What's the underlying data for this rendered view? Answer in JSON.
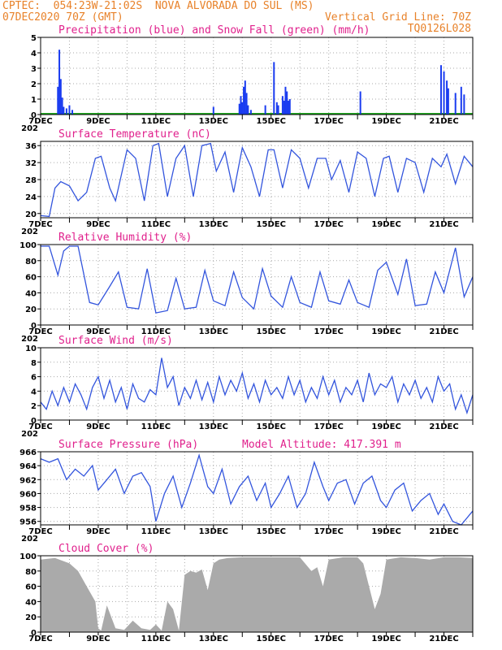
{
  "header": {
    "line1_left": "CPTEC:  054:23W-21:02S  NOVA ALVORADA DO SUL (MS)",
    "line2_left": "07DEC2020 70Z (GMT)",
    "line2_right": "Vertical Grid Line: 70Z",
    "line3_right": "TQ0126L028"
  },
  "x_axis": {
    "labels": [
      "7DEC",
      "9DEC",
      "11DEC",
      "13DEC",
      "15DEC",
      "17DEC",
      "19DEC",
      "21DEC"
    ],
    "label_days": [
      7,
      9,
      11,
      13,
      15,
      17,
      19,
      21
    ],
    "start_day": 7,
    "end_day": 22,
    "year_label": "202"
  },
  "colors": {
    "blue_line": "#3355dd",
    "precip": "#1a3cf0",
    "snow": "#22aa22",
    "cloud": "#aaaaaa",
    "title": "#e0208c",
    "header": "#e8822a"
  },
  "chart_data": [
    {
      "type": "bar",
      "title": "Precipitation (blue) and Snow Fall (green) (mm/h)",
      "ylim": [
        0,
        5
      ],
      "yticks": [
        0,
        1,
        2,
        3,
        4,
        5
      ],
      "x_day": [
        7.6,
        7.65,
        7.7,
        7.75,
        7.8,
        7.9,
        8.0,
        8.1,
        13.0,
        13.9,
        13.95,
        14.0,
        14.05,
        14.1,
        14.15,
        14.2,
        14.3,
        14.8,
        15.1,
        15.2,
        15.25,
        15.4,
        15.45,
        15.5,
        15.55,
        15.6,
        15.65,
        18.1,
        20.9,
        21.0,
        21.1,
        21.15,
        21.4,
        21.6,
        21.7
      ],
      "values": [
        1.8,
        4.2,
        2.3,
        1.1,
        0.5,
        0.4,
        0.6,
        0.3,
        0.5,
        0.7,
        1.2,
        0.8,
        1.8,
        2.2,
        1.4,
        0.6,
        0.3,
        0.6,
        3.4,
        0.8,
        0.6,
        1.2,
        0.9,
        1.8,
        1.5,
        0.9,
        1.0,
        1.5,
        3.2,
        2.8,
        2.2,
        1.7,
        1.4,
        1.8,
        1.3
      ]
    },
    {
      "type": "line",
      "title": "Surface Temperature (nC)",
      "ylim": [
        19,
        37
      ],
      "yticks": [
        20,
        24,
        28,
        32,
        36
      ],
      "x_day": [
        7.0,
        7.3,
        7.5,
        7.7,
        8.0,
        8.3,
        8.6,
        8.9,
        9.1,
        9.4,
        9.6,
        10.0,
        10.3,
        10.6,
        10.9,
        11.1,
        11.4,
        11.7,
        12.0,
        12.3,
        12.6,
        12.9,
        13.1,
        13.4,
        13.7,
        14.0,
        14.3,
        14.6,
        14.9,
        15.1,
        15.4,
        15.7,
        16.0,
        16.3,
        16.6,
        16.9,
        17.1,
        17.4,
        17.7,
        18.0,
        18.3,
        18.6,
        18.9,
        19.1,
        19.4,
        19.7,
        20.0,
        20.3,
        20.6,
        20.9,
        21.1,
        21.4,
        21.7,
        22.0
      ],
      "values": [
        19.5,
        19.3,
        26,
        27.5,
        26.5,
        23,
        25,
        33,
        33.5,
        26,
        23,
        35,
        33,
        23,
        36,
        36.5,
        24,
        33,
        36,
        24,
        36,
        36.5,
        30,
        34.5,
        25,
        35.5,
        31,
        24,
        35,
        35,
        26,
        35,
        33,
        26,
        33,
        33,
        28,
        32.5,
        25,
        34.5,
        33,
        24,
        33,
        33.5,
        25,
        33,
        32,
        25,
        33,
        31,
        34,
        27,
        33.5,
        31
      ]
    },
    {
      "type": "line",
      "title": "Relative Humidity (%)",
      "ylim": [
        0,
        100
      ],
      "yticks": [
        0,
        20,
        40,
        60,
        80,
        100
      ],
      "x_day": [
        7.0,
        7.3,
        7.6,
        7.8,
        8.0,
        8.3,
        8.7,
        9.0,
        9.4,
        9.7,
        10.0,
        10.4,
        10.7,
        11.0,
        11.4,
        11.7,
        12.0,
        12.4,
        12.7,
        13.0,
        13.4,
        13.7,
        14.0,
        14.4,
        14.7,
        15.0,
        15.4,
        15.7,
        16.0,
        16.4,
        16.7,
        17.0,
        17.4,
        17.7,
        18.0,
        18.4,
        18.7,
        19.0,
        19.4,
        19.7,
        20.0,
        20.4,
        20.7,
        21.0,
        21.4,
        21.7,
        22.0
      ],
      "values": [
        98,
        98,
        62,
        92,
        98,
        98,
        28,
        25,
        48,
        66,
        22,
        20,
        70,
        15,
        18,
        58,
        20,
        22,
        68,
        30,
        24,
        66,
        34,
        20,
        70,
        36,
        22,
        60,
        28,
        22,
        66,
        30,
        26,
        56,
        28,
        22,
        68,
        78,
        38,
        82,
        24,
        26,
        66,
        40,
        96,
        35,
        60
      ]
    },
    {
      "type": "line",
      "title": "Surface Wind (m/s)",
      "ylim": [
        0,
        10
      ],
      "yticks": [
        0,
        2,
        4,
        6,
        8,
        10
      ],
      "x_day": [
        7.0,
        7.2,
        7.4,
        7.6,
        7.8,
        8.0,
        8.2,
        8.4,
        8.6,
        8.8,
        9.0,
        9.2,
        9.4,
        9.6,
        9.8,
        10.0,
        10.2,
        10.4,
        10.6,
        10.8,
        11.0,
        11.2,
        11.4,
        11.6,
        11.8,
        12.0,
        12.2,
        12.4,
        12.6,
        12.8,
        13.0,
        13.2,
        13.4,
        13.6,
        13.8,
        14.0,
        14.2,
        14.4,
        14.6,
        14.8,
        15.0,
        15.2,
        15.4,
        15.6,
        15.8,
        16.0,
        16.2,
        16.4,
        16.6,
        16.8,
        17.0,
        17.2,
        17.4,
        17.6,
        17.8,
        18.0,
        18.2,
        18.4,
        18.6,
        18.8,
        19.0,
        19.2,
        19.4,
        19.6,
        19.8,
        20.0,
        20.2,
        20.4,
        20.6,
        20.8,
        21.0,
        21.2,
        21.4,
        21.6,
        21.8,
        22.0
      ],
      "values": [
        2.5,
        1.5,
        4,
        2,
        4.5,
        2.5,
        5,
        3.5,
        1.5,
        4.5,
        6,
        3,
        5.5,
        2.5,
        4.5,
        1.5,
        5,
        3,
        2.5,
        4.2,
        3.5,
        8.6,
        4.5,
        6,
        2,
        4.5,
        3,
        5.5,
        2.8,
        5.2,
        2.5,
        6,
        3.5,
        5.5,
        4,
        6.5,
        3,
        5,
        2.5,
        5.5,
        3.5,
        4.5,
        3,
        6,
        3.5,
        5.5,
        2.5,
        4.5,
        3,
        6,
        3.5,
        5.5,
        2.5,
        4.5,
        3.5,
        5.5,
        2.5,
        6.5,
        3.5,
        5,
        4.5,
        6,
        2.5,
        5,
        3.5,
        5.5,
        3,
        4.5,
        2.5,
        6,
        4,
        5,
        1.5,
        3.5,
        1,
        3.5
      ]
    },
    {
      "type": "line",
      "title": "Surface Pressure (hPa)",
      "annotation": "Model Altitude: 417.391 m",
      "ylim": [
        955.5,
        966
      ],
      "yticks": [
        956,
        958,
        960,
        962,
        964,
        966
      ],
      "x_day": [
        7.0,
        7.3,
        7.6,
        7.9,
        8.2,
        8.5,
        8.8,
        9.0,
        9.3,
        9.6,
        9.9,
        10.2,
        10.5,
        10.8,
        11.0,
        11.3,
        11.6,
        11.9,
        12.2,
        12.5,
        12.8,
        13.0,
        13.3,
        13.6,
        13.9,
        14.2,
        14.5,
        14.8,
        15.0,
        15.3,
        15.6,
        15.9,
        16.2,
        16.5,
        16.8,
        17.0,
        17.3,
        17.6,
        17.9,
        18.2,
        18.5,
        18.8,
        19.0,
        19.3,
        19.6,
        19.9,
        20.2,
        20.5,
        20.8,
        21.0,
        21.3,
        21.6,
        21.9,
        22.0
      ],
      "values": [
        965,
        964.5,
        965,
        962,
        963.5,
        962.5,
        964,
        960.5,
        962,
        963.5,
        960,
        962.5,
        963,
        961,
        956,
        960,
        962.5,
        958,
        961.5,
        965.5,
        961,
        960,
        963.5,
        958.5,
        961,
        962.5,
        959,
        961.5,
        958,
        960,
        962.5,
        958,
        960,
        964.5,
        961,
        959,
        961.5,
        962,
        958.5,
        961.5,
        962.5,
        959,
        958,
        960.5,
        961.5,
        957.5,
        959,
        960,
        957,
        958.5,
        956,
        955.5,
        957,
        957.5
      ]
    },
    {
      "type": "area",
      "title": "Cloud Cover (%)",
      "ylim": [
        0,
        100
      ],
      "yticks": [
        0,
        20,
        40,
        60,
        80,
        100
      ],
      "x_day": [
        7.0,
        7.5,
        8.0,
        8.3,
        8.6,
        8.9,
        9.0,
        9.1,
        9.3,
        9.6,
        9.9,
        10.2,
        10.5,
        10.8,
        11.0,
        11.2,
        11.4,
        11.6,
        11.8,
        12.0,
        12.2,
        12.4,
        12.6,
        12.8,
        13.0,
        13.2,
        13.5,
        14.0,
        15.0,
        16.0,
        16.4,
        16.6,
        16.8,
        17.0,
        17.5,
        18.0,
        18.2,
        18.4,
        18.6,
        18.8,
        19.0,
        19.5,
        20.0,
        20.5,
        21.0,
        21.5,
        22.0
      ],
      "values": [
        95,
        97,
        90,
        80,
        60,
        40,
        5,
        2,
        35,
        5,
        3,
        15,
        5,
        3,
        10,
        2,
        40,
        30,
        2,
        75,
        80,
        78,
        82,
        55,
        90,
        95,
        97,
        98,
        98,
        98,
        80,
        85,
        60,
        95,
        98,
        98,
        90,
        60,
        30,
        50,
        95,
        98,
        97,
        95,
        98,
        98,
        97
      ]
    }
  ]
}
